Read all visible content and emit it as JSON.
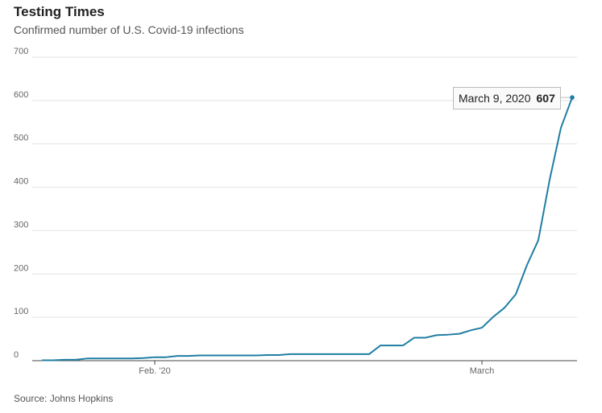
{
  "header": {
    "title": "Testing Times",
    "subtitle": "Confirmed number of U.S. Covid-19 infections"
  },
  "source": "Source: Johns Hopkins",
  "tooltip": {
    "date": "March 9, 2020",
    "value": "607"
  },
  "colors": {
    "series": "#1f7ea3",
    "grid": "#e2e2e2"
  },
  "chart_data": {
    "type": "line",
    "title": "Testing Times",
    "subtitle": "Confirmed number of U.S. Covid-19 infections",
    "xlabel": "",
    "ylabel": "",
    "x": [
      "2020-01-22",
      "2020-01-23",
      "2020-01-24",
      "2020-01-25",
      "2020-01-26",
      "2020-01-27",
      "2020-01-28",
      "2020-01-29",
      "2020-01-30",
      "2020-01-31",
      "2020-02-01",
      "2020-02-02",
      "2020-02-03",
      "2020-02-04",
      "2020-02-05",
      "2020-02-06",
      "2020-02-07",
      "2020-02-08",
      "2020-02-09",
      "2020-02-10",
      "2020-02-11",
      "2020-02-12",
      "2020-02-13",
      "2020-02-14",
      "2020-02-15",
      "2020-02-16",
      "2020-02-17",
      "2020-02-18",
      "2020-02-19",
      "2020-02-20",
      "2020-02-21",
      "2020-02-22",
      "2020-02-23",
      "2020-02-24",
      "2020-02-25",
      "2020-02-26",
      "2020-02-27",
      "2020-02-28",
      "2020-02-29",
      "2020-03-01",
      "2020-03-02",
      "2020-03-03",
      "2020-03-04",
      "2020-03-05",
      "2020-03-06",
      "2020-03-07",
      "2020-03-08",
      "2020-03-09"
    ],
    "series": [
      {
        "name": "",
        "values": [
          1,
          1,
          2,
          2,
          5,
          5,
          5,
          5,
          5,
          6,
          8,
          8,
          11,
          11,
          12,
          12,
          12,
          12,
          12,
          12,
          13,
          13,
          15,
          15,
          15,
          15,
          15,
          15,
          15,
          15,
          35,
          35,
          35,
          53,
          53,
          59,
          60,
          62,
          70,
          76,
          101,
          122,
          153,
          221,
          278,
          417,
          537,
          607
        ]
      }
    ],
    "ylim": [
      0,
      700
    ],
    "yticks": [
      0,
      100,
      200,
      300,
      400,
      500,
      600,
      700
    ],
    "xticks": [
      {
        "value": "2020-02-01",
        "label": "Feb. '20"
      },
      {
        "value": "2020-03-01",
        "label": "March"
      }
    ],
    "grid": "horizontal",
    "legend": "none",
    "highlight": {
      "x": "2020-03-09",
      "y": 607
    }
  }
}
